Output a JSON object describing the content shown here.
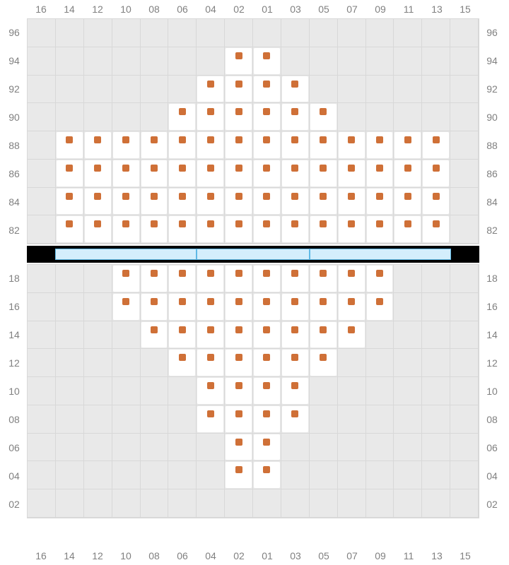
{
  "layout": {
    "col_labels": [
      "16",
      "14",
      "12",
      "10",
      "08",
      "06",
      "04",
      "02",
      "01",
      "03",
      "05",
      "07",
      "09",
      "11",
      "13",
      "15"
    ],
    "upper_rows": [
      "96",
      "94",
      "92",
      "90",
      "88",
      "86",
      "84",
      "82"
    ],
    "lower_rows": [
      "18",
      "16",
      "14",
      "12",
      "10",
      "08",
      "06",
      "04",
      "02"
    ],
    "colors": {
      "dot": "#cf7037",
      "grid_bg": "#e9e9e9",
      "grid_line": "#d8d8d8",
      "block_bg": "#ffffff",
      "label_color": "#808080",
      "divider": "#000000",
      "stage_fill": "#d4eefc",
      "stage_border": "#5fb9e6"
    },
    "stage_segments": [
      {
        "left_pct": 6.25,
        "width_pct": 31.25
      },
      {
        "left_pct": 37.5,
        "width_pct": 25.0
      },
      {
        "left_pct": 62.5,
        "width_pct": 31.25
      }
    ]
  },
  "upper_blocks": [
    {
      "r": 1,
      "c": 7
    },
    {
      "r": 1,
      "c": 8
    },
    {
      "r": 2,
      "c": 6
    },
    {
      "r": 2,
      "c": 7
    },
    {
      "r": 2,
      "c": 8
    },
    {
      "r": 2,
      "c": 9
    },
    {
      "r": 3,
      "c": 5
    },
    {
      "r": 3,
      "c": 6
    },
    {
      "r": 3,
      "c": 7
    },
    {
      "r": 3,
      "c": 8
    },
    {
      "r": 3,
      "c": 9
    },
    {
      "r": 3,
      "c": 10
    },
    {
      "r": 4,
      "c": 1
    },
    {
      "r": 4,
      "c": 2
    },
    {
      "r": 4,
      "c": 3
    },
    {
      "r": 4,
      "c": 4
    },
    {
      "r": 4,
      "c": 5
    },
    {
      "r": 4,
      "c": 6
    },
    {
      "r": 4,
      "c": 7
    },
    {
      "r": 4,
      "c": 8
    },
    {
      "r": 4,
      "c": 9
    },
    {
      "r": 4,
      "c": 10
    },
    {
      "r": 4,
      "c": 11
    },
    {
      "r": 4,
      "c": 12
    },
    {
      "r": 4,
      "c": 13
    },
    {
      "r": 4,
      "c": 14
    },
    {
      "r": 5,
      "c": 1
    },
    {
      "r": 5,
      "c": 2
    },
    {
      "r": 5,
      "c": 3
    },
    {
      "r": 5,
      "c": 4
    },
    {
      "r": 5,
      "c": 5
    },
    {
      "r": 5,
      "c": 6
    },
    {
      "r": 5,
      "c": 7
    },
    {
      "r": 5,
      "c": 8
    },
    {
      "r": 5,
      "c": 9
    },
    {
      "r": 5,
      "c": 10
    },
    {
      "r": 5,
      "c": 11
    },
    {
      "r": 5,
      "c": 12
    },
    {
      "r": 5,
      "c": 13
    },
    {
      "r": 5,
      "c": 14
    },
    {
      "r": 6,
      "c": 1
    },
    {
      "r": 6,
      "c": 2
    },
    {
      "r": 6,
      "c": 3
    },
    {
      "r": 6,
      "c": 4
    },
    {
      "r": 6,
      "c": 5
    },
    {
      "r": 6,
      "c": 6
    },
    {
      "r": 6,
      "c": 7
    },
    {
      "r": 6,
      "c": 8
    },
    {
      "r": 6,
      "c": 9
    },
    {
      "r": 6,
      "c": 10
    },
    {
      "r": 6,
      "c": 11
    },
    {
      "r": 6,
      "c": 12
    },
    {
      "r": 6,
      "c": 13
    },
    {
      "r": 6,
      "c": 14
    },
    {
      "r": 7,
      "c": 1
    },
    {
      "r": 7,
      "c": 2
    },
    {
      "r": 7,
      "c": 3
    },
    {
      "r": 7,
      "c": 4
    },
    {
      "r": 7,
      "c": 5
    },
    {
      "r": 7,
      "c": 6
    },
    {
      "r": 7,
      "c": 7
    },
    {
      "r": 7,
      "c": 8
    },
    {
      "r": 7,
      "c": 9
    },
    {
      "r": 7,
      "c": 10
    },
    {
      "r": 7,
      "c": 11
    },
    {
      "r": 7,
      "c": 12
    },
    {
      "r": 7,
      "c": 13
    },
    {
      "r": 7,
      "c": 14
    }
  ],
  "lower_blocks": [
    {
      "r": 0,
      "c": 3
    },
    {
      "r": 0,
      "c": 4
    },
    {
      "r": 0,
      "c": 5
    },
    {
      "r": 0,
      "c": 6
    },
    {
      "r": 0,
      "c": 7
    },
    {
      "r": 0,
      "c": 8
    },
    {
      "r": 0,
      "c": 9
    },
    {
      "r": 0,
      "c": 10
    },
    {
      "r": 0,
      "c": 11
    },
    {
      "r": 0,
      "c": 12
    },
    {
      "r": 1,
      "c": 3
    },
    {
      "r": 1,
      "c": 4
    },
    {
      "r": 1,
      "c": 5
    },
    {
      "r": 1,
      "c": 6
    },
    {
      "r": 1,
      "c": 7
    },
    {
      "r": 1,
      "c": 8
    },
    {
      "r": 1,
      "c": 9
    },
    {
      "r": 1,
      "c": 10
    },
    {
      "r": 1,
      "c": 11
    },
    {
      "r": 1,
      "c": 12
    },
    {
      "r": 2,
      "c": 4
    },
    {
      "r": 2,
      "c": 5
    },
    {
      "r": 2,
      "c": 6
    },
    {
      "r": 2,
      "c": 7
    },
    {
      "r": 2,
      "c": 8
    },
    {
      "r": 2,
      "c": 9
    },
    {
      "r": 2,
      "c": 10
    },
    {
      "r": 2,
      "c": 11
    },
    {
      "r": 3,
      "c": 5
    },
    {
      "r": 3,
      "c": 6
    },
    {
      "r": 3,
      "c": 7
    },
    {
      "r": 3,
      "c": 8
    },
    {
      "r": 3,
      "c": 9
    },
    {
      "r": 3,
      "c": 10
    },
    {
      "r": 4,
      "c": 6
    },
    {
      "r": 4,
      "c": 7
    },
    {
      "r": 4,
      "c": 8
    },
    {
      "r": 4,
      "c": 9
    },
    {
      "r": 5,
      "c": 6
    },
    {
      "r": 5,
      "c": 7
    },
    {
      "r": 5,
      "c": 8
    },
    {
      "r": 5,
      "c": 9
    },
    {
      "r": 6,
      "c": 7
    },
    {
      "r": 6,
      "c": 8
    },
    {
      "r": 7,
      "c": 7
    },
    {
      "r": 7,
      "c": 8
    }
  ]
}
